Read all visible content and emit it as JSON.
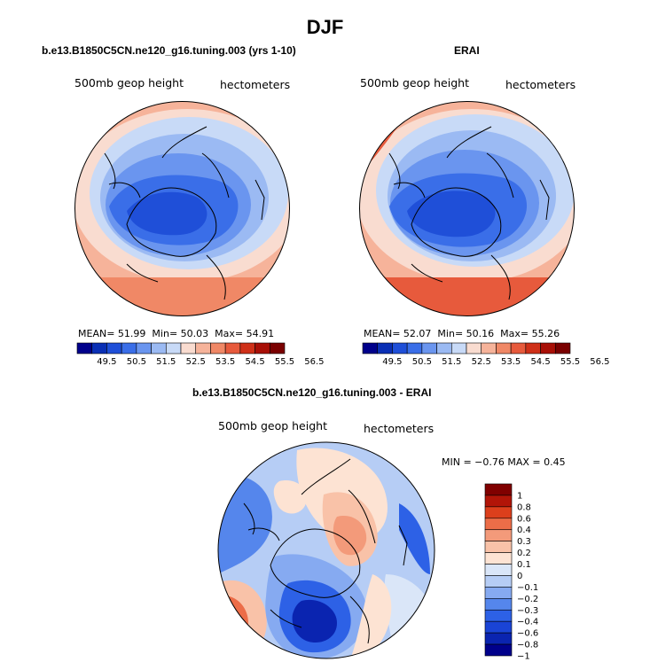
{
  "page": {
    "title": "DJF"
  },
  "panels": [
    {
      "title": "b.e13.B1850C5CN.ne120_g16.tuning.003 (yrs 1-10)",
      "left_label": "500mb geop height",
      "right_label": "hectometers",
      "stats": {
        "mean_label": "MEAN=",
        "mean": "51.99",
        "min_label": "Min=",
        "min": "50.03",
        "max_label": "Max=",
        "max": "54.91"
      }
    },
    {
      "title": "ERAI",
      "left_label": "500mb geop height",
      "right_label": "hectometers",
      "stats": {
        "mean_label": "MEAN=",
        "mean": "52.07",
        "min_label": "Min=",
        "min": "50.16",
        "max_label": "Max=",
        "max": "55.26"
      }
    },
    {
      "title": "b.e13.B1850C5CN.ne120_g16.tuning.003 - ERAI",
      "left_label": "500mb geop height",
      "right_label": "hectometers",
      "stats_text": "MIN =   −0.76 MAX =    0.45"
    }
  ],
  "colorbar_abs": {
    "colors": [
      "#00008b",
      "#0a2fb5",
      "#1f4fd8",
      "#3a6ee8",
      "#6a95ef",
      "#9bbaf3",
      "#c8daf7",
      "#f9dcd0",
      "#f6b39a",
      "#f08866",
      "#e75a3c",
      "#cf3018",
      "#a80f06",
      "#7a0000"
    ],
    "labels": [
      "49.5",
      "50.5",
      "51.5",
      "52.5",
      "53.5",
      "54.5",
      "55.5",
      "56.5"
    ]
  },
  "colorbar_diff": {
    "colors": [
      "#00008b",
      "#0a24b0",
      "#1a44d6",
      "#2d61e6",
      "#5586ec",
      "#86aaf1",
      "#b6cdf5",
      "#dae6f8",
      "#fde3d3",
      "#f9c2a8",
      "#f39a7a",
      "#ec6d48",
      "#dc3f1c",
      "#b21508",
      "#800000"
    ],
    "labels": [
      "1",
      "0.8",
      "0.6",
      "0.4",
      "0.3",
      "0.2",
      "0.1",
      "0",
      "−0.1",
      "−0.2",
      "−0.3",
      "−0.4",
      "−0.6",
      "−0.8",
      "−1"
    ]
  }
}
